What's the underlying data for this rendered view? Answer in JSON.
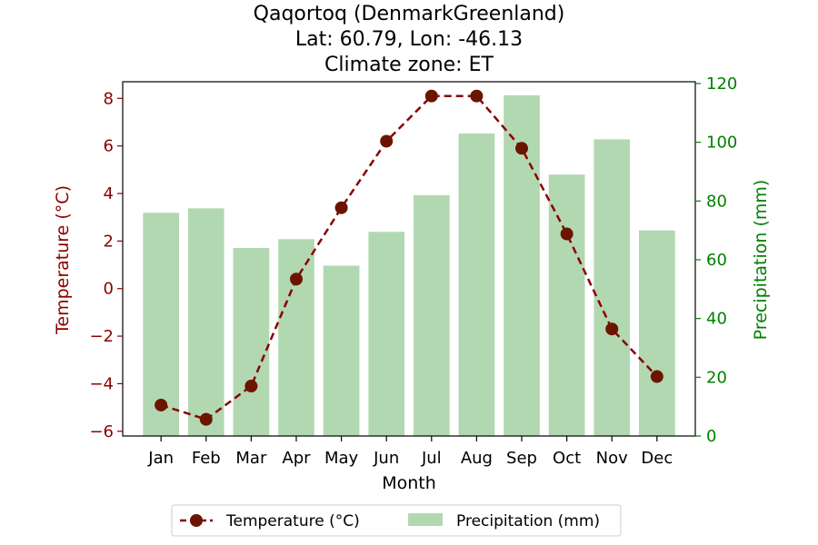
{
  "chart_data": {
    "type": "bar+line",
    "title_lines": [
      "Qaqortoq (DenmarkGreenland)",
      "Lat: 60.79, Lon: -46.13",
      "Climate zone: ET"
    ],
    "xlabel": "Month",
    "ylabel_left": "Temperature (°C)",
    "ylabel_right": "Precipitation (mm)",
    "categories": [
      "Jan",
      "Feb",
      "Mar",
      "Apr",
      "May",
      "Jun",
      "Jul",
      "Aug",
      "Sep",
      "Oct",
      "Nov",
      "Dec"
    ],
    "ylim_left": [
      -6.2,
      8.7
    ],
    "ylim_right": [
      0,
      120.6
    ],
    "yticks_left": [
      -6,
      -4,
      -2,
      0,
      2,
      4,
      6,
      8
    ],
    "yticks_right": [
      0,
      20,
      40,
      60,
      80,
      100,
      120
    ],
    "yticklabels_left": [
      "−6",
      "−4",
      "−2",
      "0",
      "2",
      "4",
      "6",
      "8"
    ],
    "yticklabels_right": [
      "0",
      "20",
      "40",
      "60",
      "80",
      "100",
      "120"
    ],
    "series": [
      {
        "name": "Temperature (°C)",
        "axis": "left",
        "kind": "line",
        "values": [
          -4.9,
          -5.5,
          -4.1,
          0.4,
          3.4,
          6.2,
          8.1,
          8.1,
          5.9,
          2.3,
          -1.7,
          -3.7
        ]
      },
      {
        "name": "Precipitation (mm)",
        "axis": "right",
        "kind": "bar",
        "values": [
          76,
          77.5,
          64,
          67,
          58,
          69.5,
          82,
          103,
          116,
          89,
          101,
          70
        ]
      }
    ],
    "legend_position": "bottom-center",
    "grid": false,
    "colors": {
      "temperature_line": "#8b0000",
      "temperature_marker": "#6b1500",
      "precipitation_bar": "#b2d8b2",
      "left_axis": "#8b0000",
      "right_axis": "#008000",
      "frame": "#000000"
    }
  }
}
